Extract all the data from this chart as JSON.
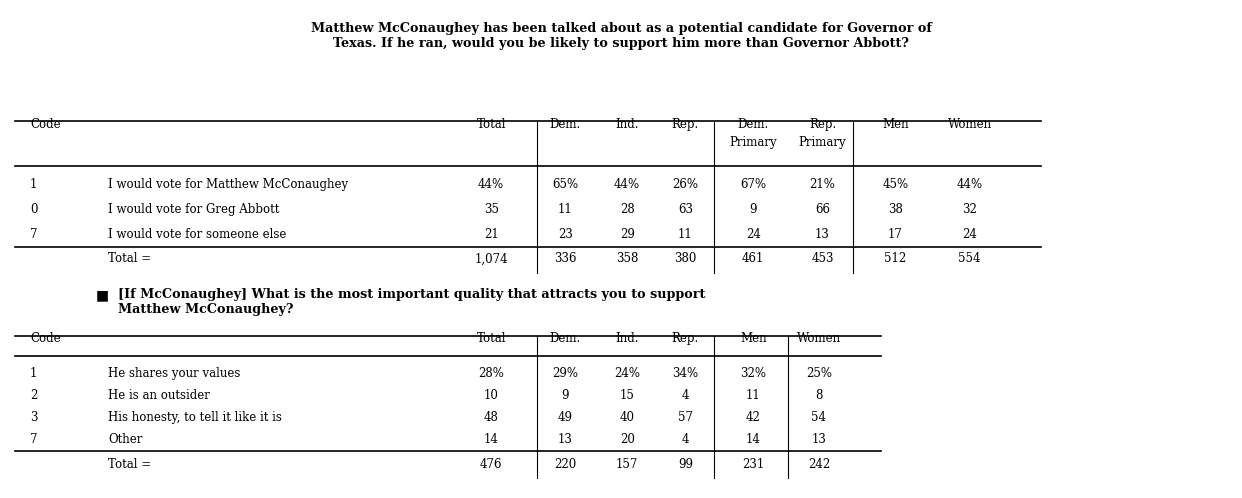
{
  "title1": "Matthew McConaughey has been talked about as a potential candidate for Governor of\nTexas. If he ran, would you be likely to support him more than Governor Abbott?",
  "table1": {
    "headers": [
      "Code",
      "",
      "Total",
      "Dem.",
      "Ind.",
      "Rep.",
      "Dem.",
      "Rep.",
      "Men",
      "Women"
    ],
    "headers_row2": [
      "",
      "",
      "",
      "",
      "",
      "",
      "Primary",
      "Primary",
      "",
      ""
    ],
    "rows": [
      [
        "1",
        "I would vote for Matthew McConaughey",
        "44%",
        "65%",
        "44%",
        "26%",
        "67%",
        "21%",
        "45%",
        "44%"
      ],
      [
        "0",
        "I would vote for Greg Abbott",
        "35",
        "11",
        "28",
        "63",
        "9",
        "66",
        "38",
        "32"
      ],
      [
        "7",
        "I would vote for someone else",
        "21",
        "23",
        "29",
        "11",
        "24",
        "13",
        "17",
        "24"
      ]
    ],
    "total_row": [
      "",
      "Total =",
      "1,074",
      "336",
      "358",
      "380",
      "461",
      "453",
      "512",
      "554"
    ]
  },
  "title2_bullet": "■",
  "title2": "[If McConaughey] What is the most important quality that attracts you to support\nMatthew McConaughey?",
  "table2": {
    "headers": [
      "Code",
      "",
      "Total",
      "Dem.",
      "Ind.",
      "Rep.",
      "Men",
      "Women"
    ],
    "rows": [
      [
        "1",
        "He shares your values",
        "28%",
        "29%",
        "24%",
        "34%",
        "32%",
        "25%"
      ],
      [
        "2",
        "He is an outsider",
        "10",
        "9",
        "15",
        "4",
        "11",
        "8"
      ],
      [
        "3",
        "His honesty, to tell it like it is",
        "48",
        "49",
        "40",
        "57",
        "42",
        "54"
      ],
      [
        "7",
        "Other",
        "14",
        "13",
        "20",
        "4",
        "14",
        "13"
      ]
    ],
    "total_row": [
      "",
      "Total =",
      "476",
      "220",
      "157",
      "99",
      "231",
      "242"
    ]
  },
  "bg_color": "#ffffff",
  "text_color": "#000000",
  "font_family": "DejaVu Serif"
}
